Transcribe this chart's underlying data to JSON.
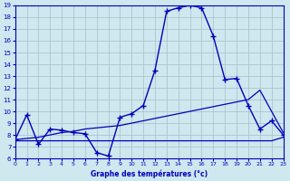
{
  "xlabel": "Graphe des températures (°c)",
  "xlim": [
    0,
    23
  ],
  "ylim": [
    6,
    19
  ],
  "yticks": [
    6,
    7,
    8,
    9,
    10,
    11,
    12,
    13,
    14,
    15,
    16,
    17,
    18,
    19
  ],
  "xticks": [
    0,
    1,
    2,
    3,
    4,
    5,
    6,
    7,
    8,
    9,
    10,
    11,
    12,
    13,
    14,
    15,
    16,
    17,
    18,
    19,
    20,
    21,
    22,
    23
  ],
  "bg_color": "#cde8ee",
  "line_color": "#0000bb",
  "grid_color": "#a0c0c8",
  "main_y": [
    7.6,
    9.7,
    7.2,
    8.5,
    8.4,
    8.2,
    8.1,
    6.5,
    6.2,
    9.5,
    9.8,
    10.5,
    13.5,
    18.5,
    18.8,
    19.0,
    18.8,
    16.4,
    12.7,
    12.8,
    10.5,
    8.5,
    9.2,
    8.0
  ],
  "min_y": [
    7.5,
    7.5,
    7.5,
    7.5,
    7.5,
    7.5,
    7.5,
    7.5,
    7.5,
    7.5,
    7.5,
    7.5,
    7.5,
    7.5,
    7.5,
    7.5,
    7.5,
    7.5,
    7.5,
    7.5,
    7.5,
    7.5,
    7.5,
    7.8
  ],
  "max_y": [
    7.6,
    7.7,
    7.8,
    8.0,
    8.2,
    8.3,
    8.5,
    8.6,
    8.7,
    8.8,
    9.0,
    9.2,
    9.4,
    9.6,
    9.8,
    10.0,
    10.2,
    10.4,
    10.6,
    10.8,
    11.0,
    11.8,
    10.0,
    8.2
  ]
}
